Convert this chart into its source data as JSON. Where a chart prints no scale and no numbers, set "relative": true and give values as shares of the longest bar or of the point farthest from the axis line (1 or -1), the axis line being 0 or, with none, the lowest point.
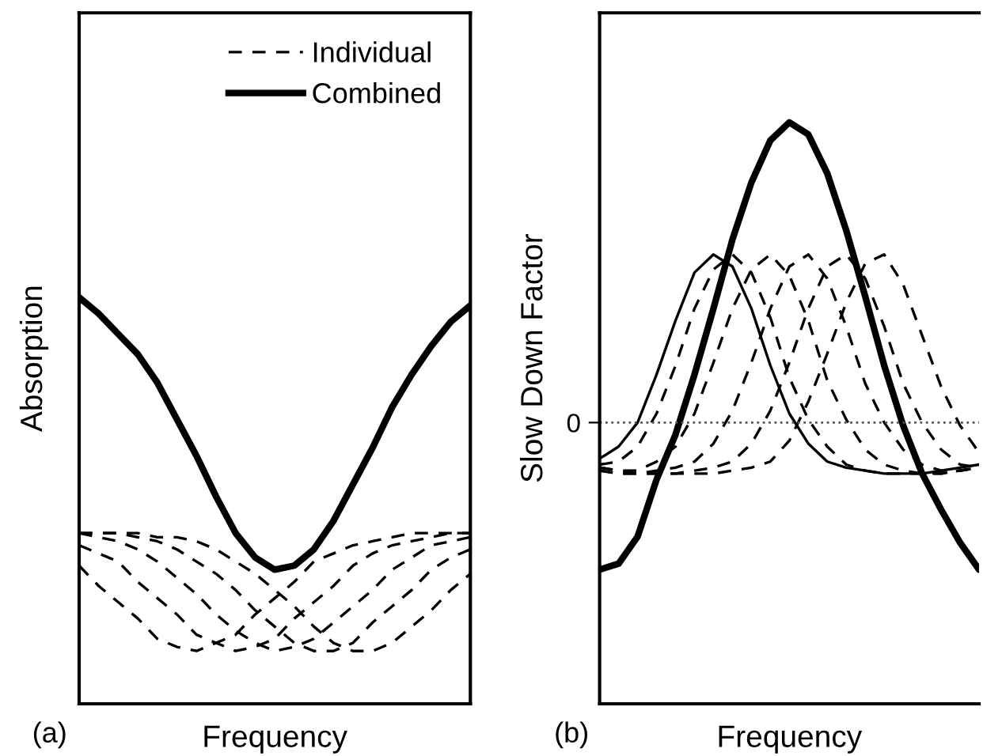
{
  "chart_data": [
    {
      "type": "line",
      "relative": true,
      "ylabel": "Absorption",
      "xlabel": "Frequency",
      "legend": "top right",
      "annotations": [
        "(a)"
      ],
      "categories": [
        null,
        null,
        null,
        null,
        null,
        null,
        null,
        null,
        null,
        null,
        null,
        null,
        null,
        null,
        null,
        null,
        null,
        null,
        null,
        null,
        null
      ],
      "series": [
        {
          "name": "Individual",
          "color": "#000000",
          "line_style": "dashed",
          "values": [
            0.34,
            0.29,
            0.25,
            0.21,
            0.16,
            0.14,
            0.13,
            0.15,
            0.17,
            0.22,
            0.26,
            0.3,
            0.35,
            0.37,
            0.39,
            0.4,
            0.41,
            0.42,
            0.42,
            0.42,
            0.42
          ]
        },
        {
          "color": "#000000",
          "line_style": "dashed",
          "values": [
            0.39,
            0.37,
            0.35,
            0.3,
            0.26,
            0.22,
            0.17,
            0.15,
            0.13,
            0.14,
            0.16,
            0.21,
            0.25,
            0.29,
            0.34,
            0.37,
            0.39,
            0.4,
            0.41,
            0.42,
            0.42
          ]
        },
        {
          "color": "#000000",
          "line_style": "dashed",
          "values": [
            0.42,
            0.41,
            0.4,
            0.38,
            0.35,
            0.31,
            0.27,
            0.22,
            0.18,
            0.15,
            0.13,
            0.14,
            0.16,
            0.2,
            0.24,
            0.28,
            0.33,
            0.36,
            0.39,
            0.4,
            0.41
          ]
        },
        {
          "color": "#000000",
          "line_style": "dashed",
          "values": [
            0.42,
            0.42,
            0.42,
            0.41,
            0.4,
            0.38,
            0.35,
            0.32,
            0.28,
            0.23,
            0.19,
            0.15,
            0.13,
            0.13,
            0.15,
            0.2,
            0.24,
            0.28,
            0.33,
            0.36,
            0.38
          ]
        },
        {
          "color": "#000000",
          "line_style": "dashed",
          "values": [
            0.42,
            0.42,
            0.42,
            0.42,
            0.41,
            0.41,
            0.4,
            0.38,
            0.35,
            0.32,
            0.28,
            0.24,
            0.19,
            0.15,
            0.13,
            0.13,
            0.15,
            0.19,
            0.23,
            0.28,
            0.32
          ]
        },
        {
          "name": "Combined",
          "color": "#000000",
          "line_style": "solid",
          "values": [
            1.0,
            0.96,
            0.91,
            0.86,
            0.79,
            0.7,
            0.61,
            0.51,
            0.42,
            0.36,
            0.33,
            0.34,
            0.38,
            0.45,
            0.54,
            0.63,
            0.73,
            0.81,
            0.88,
            0.94,
            0.98
          ]
        }
      ]
    },
    {
      "type": "line",
      "relative": true,
      "ylabel": "Slow Down Factor",
      "xlabel": "Frequency",
      "annotations": [
        "(b)"
      ],
      "ref_lines": [
        {
          "axis": "y",
          "value": 0,
          "label": "0",
          "line_style": "dotted",
          "color": "#555555"
        }
      ],
      "categories": [
        null,
        null,
        null,
        null,
        null,
        null,
        null,
        null,
        null,
        null,
        null,
        null,
        null,
        null,
        null,
        null,
        null,
        null,
        null,
        null,
        null
      ],
      "series": [
        {
          "color": "#000000",
          "line_style": "dashed",
          "values": [
            -0.14,
            -0.13,
            -0.08,
            0.03,
            0.19,
            0.38,
            0.51,
            0.56,
            0.5,
            0.35,
            0.15,
            0.01,
            -0.08,
            -0.14,
            -0.16,
            -0.17,
            -0.17,
            -0.17,
            -0.17,
            -0.16,
            -0.15
          ]
        },
        {
          "color": "#000000",
          "line_style": "dashed",
          "values": [
            -0.15,
            -0.16,
            -0.16,
            -0.13,
            -0.08,
            0.03,
            0.2,
            0.38,
            0.51,
            0.56,
            0.49,
            0.34,
            0.14,
            0.01,
            -0.09,
            -0.14,
            -0.16,
            -0.17,
            -0.17,
            -0.16,
            -0.15
          ]
        },
        {
          "color": "#000000",
          "line_style": "dashed",
          "values": [
            -0.15,
            -0.16,
            -0.17,
            -0.16,
            -0.15,
            -0.13,
            -0.07,
            0.04,
            0.2,
            0.38,
            0.52,
            0.56,
            0.48,
            0.32,
            0.13,
            0.0,
            -0.09,
            -0.14,
            -0.16,
            -0.16,
            -0.15
          ]
        },
        {
          "color": "#000000",
          "line_style": "dashed",
          "values": [
            -0.16,
            -0.17,
            -0.17,
            -0.17,
            -0.17,
            -0.16,
            -0.15,
            -0.13,
            -0.07,
            0.04,
            0.2,
            0.38,
            0.52,
            0.56,
            0.48,
            0.32,
            0.13,
            0.0,
            -0.09,
            -0.14,
            -0.15
          ]
        },
        {
          "color": "#000000",
          "line_style": "dashed",
          "values": [
            -0.16,
            -0.17,
            -0.17,
            -0.17,
            -0.17,
            -0.17,
            -0.17,
            -0.16,
            -0.15,
            -0.13,
            -0.06,
            0.07,
            0.23,
            0.4,
            0.53,
            0.56,
            0.46,
            0.29,
            0.12,
            -0.01,
            -0.1
          ]
        },
        {
          "color": "#000000",
          "line_style": "solid",
          "values": [
            -0.12,
            -0.08,
            0.0,
            0.16,
            0.34,
            0.5,
            0.56,
            0.52,
            0.38,
            0.19,
            0.03,
            -0.07,
            -0.13,
            -0.15,
            -0.16,
            -0.17,
            -0.17,
            -0.17,
            -0.16,
            -0.15,
            -0.14
          ]
        },
        {
          "color": "#000000",
          "line_style": "solid",
          "values": [
            -0.49,
            -0.47,
            -0.38,
            -0.19,
            -0.04,
            0.16,
            0.38,
            0.61,
            0.8,
            0.94,
            1.0,
            0.96,
            0.83,
            0.64,
            0.42,
            0.19,
            -0.01,
            -0.17,
            -0.29,
            -0.4,
            -0.49
          ]
        }
      ]
    }
  ]
}
